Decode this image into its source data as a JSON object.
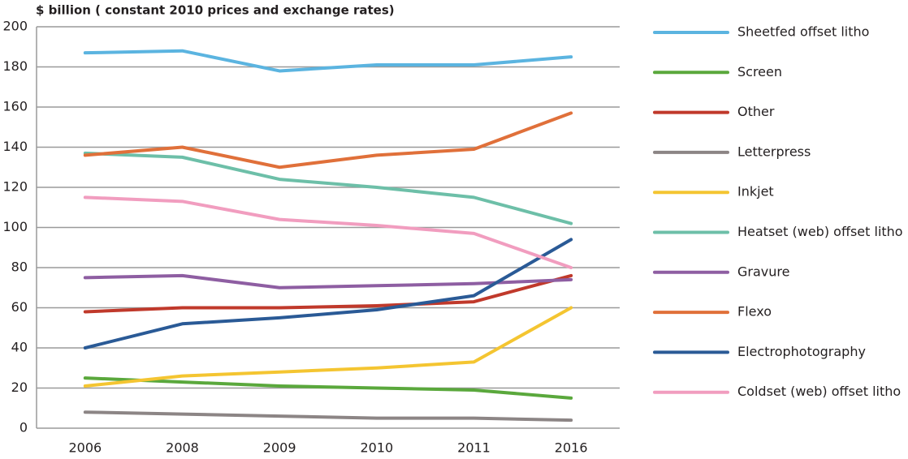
{
  "chart_data": {
    "type": "line",
    "y_axis_label": "$ billion ( constant 2010 prices and exchange rates)",
    "categories": [
      "2006",
      "2008",
      "2009",
      "2010",
      "2011",
      "2016"
    ],
    "series": [
      {
        "name": "Sheetfed offset litho",
        "color": "#5bb4e0",
        "values": [
          187,
          188,
          178,
          181,
          181,
          185
        ]
      },
      {
        "name": "Screen",
        "color": "#5aa83c",
        "values": [
          25,
          23,
          21,
          20,
          19,
          15
        ]
      },
      {
        "name": "Other",
        "color": "#c0392b",
        "values": [
          58,
          60,
          60,
          61,
          63,
          76
        ]
      },
      {
        "name": "Letterpress",
        "color": "#8c8585",
        "values": [
          8,
          7,
          6,
          5,
          5,
          4
        ]
      },
      {
        "name": "Inkjet",
        "color": "#f4c531",
        "values": [
          21,
          26,
          28,
          30,
          33,
          60
        ]
      },
      {
        "name": "Heatset (web) offset litho",
        "color": "#6dbfa8",
        "values": [
          137,
          135,
          124,
          120,
          115,
          102
        ]
      },
      {
        "name": "Gravure",
        "color": "#8e5ea2",
        "values": [
          75,
          76,
          70,
          71,
          72,
          74
        ]
      },
      {
        "name": "Flexo",
        "color": "#e0703a",
        "values": [
          136,
          140,
          130,
          136,
          139,
          157
        ]
      },
      {
        "name": "Electrophotography",
        "color": "#2a5a96",
        "values": [
          40,
          52,
          55,
          59,
          66,
          94
        ]
      },
      {
        "name": "Coldset (web) offset litho",
        "color": "#f19dbf",
        "values": [
          115,
          113,
          104,
          101,
          97,
          80
        ]
      }
    ],
    "ylim": [
      0,
      200
    ],
    "yticks": [
      0,
      20,
      40,
      60,
      80,
      100,
      120,
      140,
      160,
      180,
      200
    ],
    "grid": true,
    "legend": "right"
  }
}
